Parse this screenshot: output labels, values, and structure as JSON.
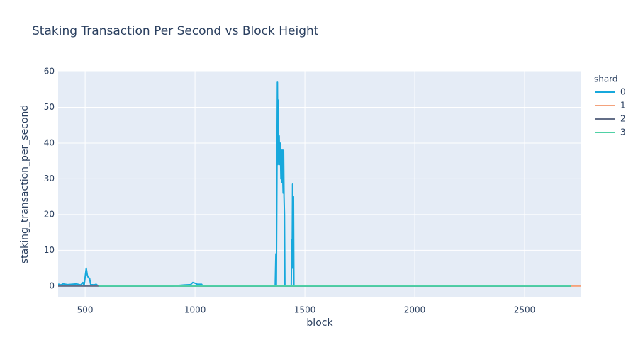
{
  "chart_data": {
    "type": "line",
    "title": "Staking Transaction Per Second vs Block Height",
    "x_label": "block",
    "y_label": "staking_transaction_per_second",
    "legend_title": "shard",
    "legend": "right",
    "grid": true,
    "xlim": [
      377,
      2758
    ],
    "ylim": [
      -3.2,
      60.2
    ],
    "xticks": [
      500,
      1000,
      1500,
      2000,
      2500
    ],
    "yticks": [
      0,
      10,
      20,
      30,
      40,
      50,
      60
    ],
    "series": [
      {
        "name": "0",
        "color": "#17a8dc",
        "x": [
          377,
          380,
          390,
          400,
          420,
          440,
          460,
          480,
          490,
          495,
          505,
          510,
          515,
          520,
          525,
          540,
          550,
          560,
          900,
          950,
          980,
          990,
          1000,
          1010,
          1030,
          1035,
          1365,
          1368,
          1370,
          1372,
          1375,
          1377,
          1379,
          1381,
          1383,
          1385,
          1387,
          1389,
          1391,
          1393,
          1395,
          1397,
          1399,
          1401,
          1403,
          1405,
          1407,
          1409,
          1438,
          1440,
          1442,
          1444,
          1446,
          1448,
          1450,
          2710
        ],
        "values": [
          0,
          0.5,
          0.3,
          0.6,
          0.4,
          0.5,
          0.6,
          0.3,
          1,
          0,
          5,
          3,
          2.3,
          2.2,
          0.5,
          0.3,
          0.5,
          0,
          0,
          0.3,
          0.4,
          1,
          0.8,
          0.5,
          0.5,
          0,
          0,
          9,
          0,
          22,
          57,
          34,
          52,
          35,
          42,
          34,
          40,
          36,
          30,
          38,
          29,
          38,
          31,
          26,
          38,
          25,
          20,
          0,
          0,
          13,
          5,
          28.5,
          12,
          25,
          0,
          0
        ]
      },
      {
        "name": "1",
        "color": "#f4a27c",
        "x": [
          2700,
          2758
        ],
        "values": [
          0,
          0
        ]
      },
      {
        "name": "2",
        "color": "#636e87",
        "x": [
          377,
          2710
        ],
        "values": [
          0,
          0
        ]
      },
      {
        "name": "3",
        "color": "#4fd1a5",
        "x": [
          560,
          2710
        ],
        "values": [
          0,
          0
        ]
      }
    ]
  }
}
